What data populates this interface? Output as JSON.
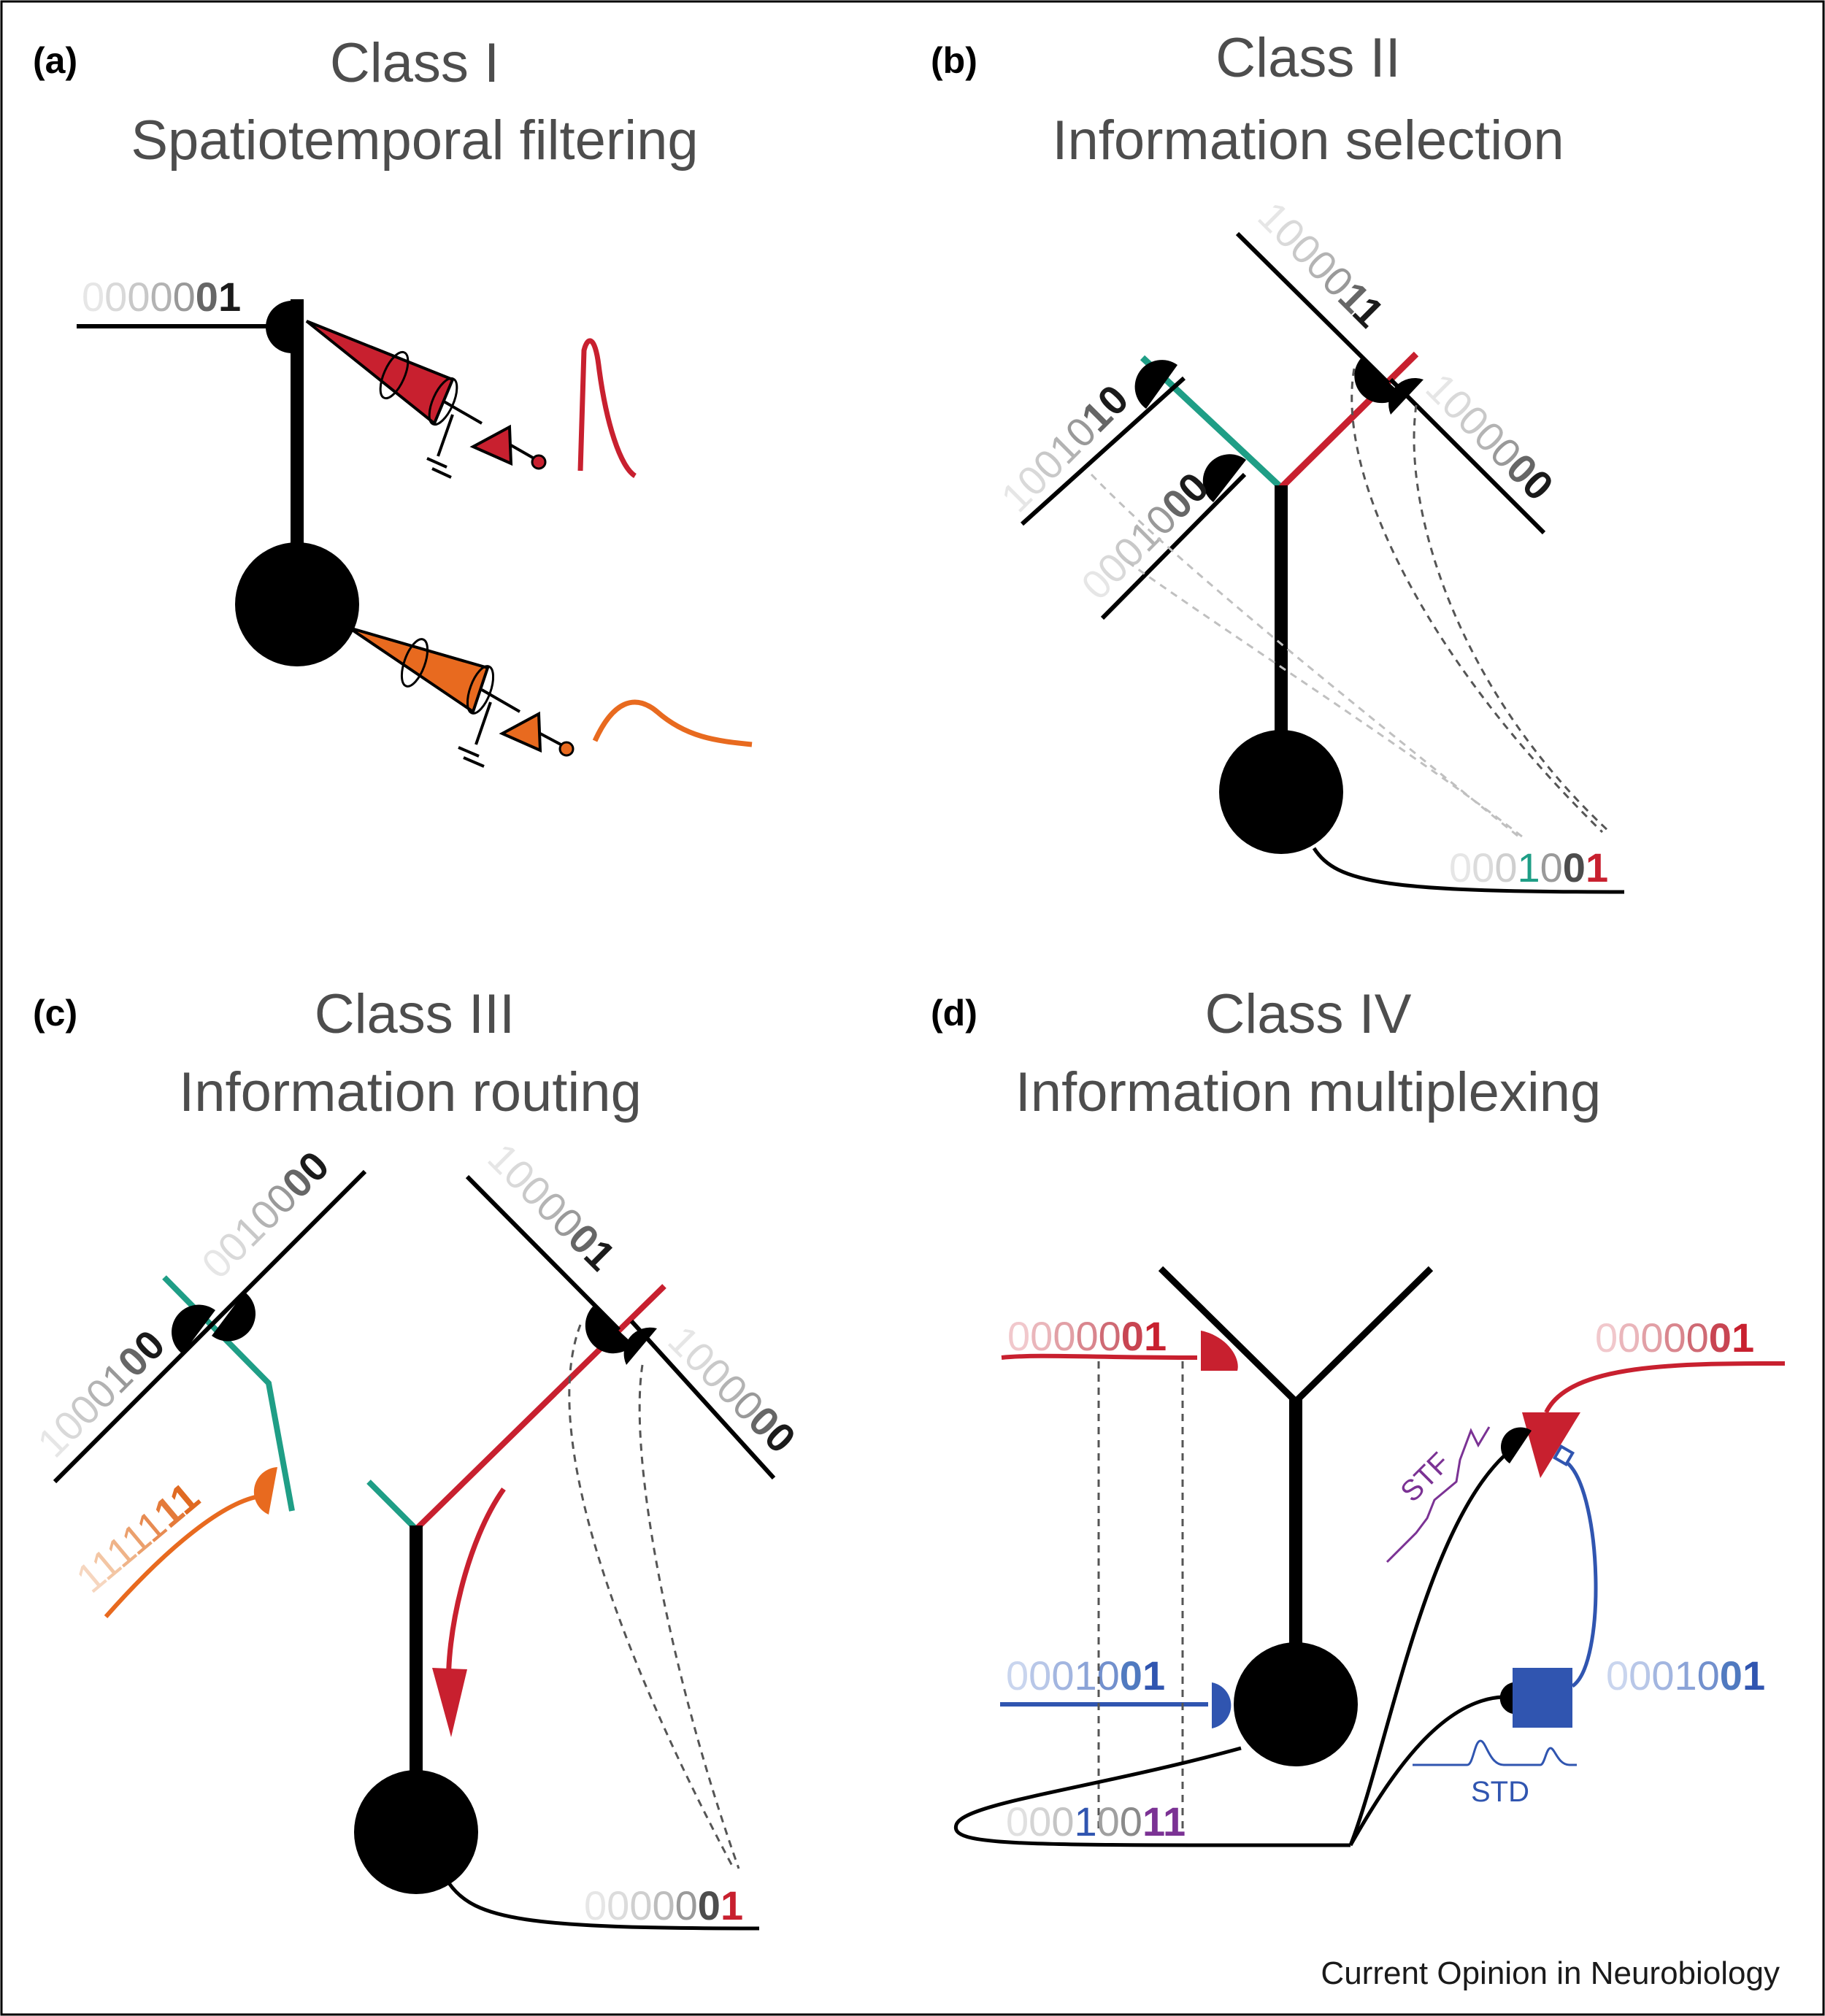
{
  "panel_a": {
    "label": "(a)",
    "class_title": "Class I",
    "subtitle": "Spatiotemporal filtering",
    "input_bits": [
      "0",
      "0",
      "0",
      "0",
      "0",
      "0",
      "1"
    ]
  },
  "panel_b": {
    "label": "(b)",
    "class_title": "Class II",
    "subtitle": "Information selection",
    "input_left_outer": [
      "1",
      "0",
      "0",
      "1",
      "0",
      "1",
      "0"
    ],
    "input_left_inner": [
      "0",
      "0",
      "0",
      "1",
      "0",
      "0",
      "0"
    ],
    "input_top": [
      "1",
      "0",
      "0",
      "0",
      "0",
      "1",
      "1"
    ],
    "input_right": [
      "1",
      "0",
      "0",
      "0",
      "0",
      "0",
      "0"
    ],
    "output_bits": [
      "0",
      "0",
      "0",
      "1",
      "0",
      "0",
      "1"
    ]
  },
  "panel_c": {
    "label": "(c)",
    "class_title": "Class III",
    "subtitle": "Information routing",
    "input_left_top": [
      "0",
      "0",
      "1",
      "0",
      "0",
      "0",
      "0"
    ],
    "input_left_bottom": [
      "1",
      "0",
      "0",
      "0",
      "1",
      "0",
      "0"
    ],
    "input_orange": [
      "1",
      "1",
      "1",
      "1",
      "1",
      "1",
      "1"
    ],
    "input_top": [
      "1",
      "0",
      "0",
      "0",
      "0",
      "0",
      "1"
    ],
    "input_right": [
      "1",
      "0",
      "0",
      "0",
      "0",
      "0",
      "0"
    ],
    "output_bits": [
      "0",
      "0",
      "0",
      "0",
      "0",
      "0",
      "1"
    ]
  },
  "panel_d": {
    "label": "(d)",
    "class_title": "Class IV",
    "subtitle": "Information multiplexing",
    "input_red": [
      "0",
      "0",
      "0",
      "0",
      "0",
      "0",
      "1"
    ],
    "input_blue": [
      "0",
      "0",
      "0",
      "1",
      "0",
      "0",
      "1"
    ],
    "right_red_bits": [
      "0",
      "0",
      "0",
      "0",
      "0",
      "0",
      "1"
    ],
    "right_blue_bits": [
      "0",
      "0",
      "0",
      "1",
      "0",
      "0",
      "1"
    ],
    "output_bits": [
      "0",
      "0",
      "0",
      "1",
      "0",
      "0",
      "1",
      "1"
    ],
    "stf_label": "STF",
    "std_label": "STD"
  },
  "footer": "Current Opinion in Neurobiology",
  "colors": {
    "red": "#c8202f",
    "orange": "#e86a1f",
    "teal": "#1f9e86",
    "blue": "#3055b0",
    "purple": "#7b3294",
    "gray_dash": "#555555"
  }
}
